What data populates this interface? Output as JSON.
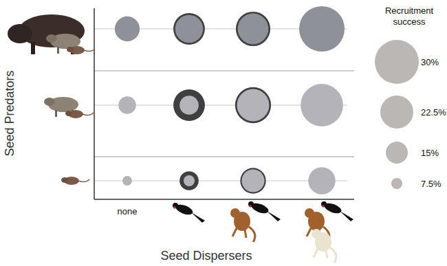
{
  "chart_data": {
    "type": "bubble",
    "x_label": "Seed Dispersers",
    "y_label": "Seed Predators",
    "categories": [
      "none",
      null,
      null,
      null
    ],
    "series": [
      {
        "color": "#8e9197",
        "values": [
          17,
          19,
          21,
          31
        ],
        "ring_values": [
          null,
          21.5,
          23.5,
          null
        ]
      },
      {
        "color": "#b3b3b9",
        "values": [
          12,
          13,
          22,
          29
        ],
        "ring_values": [
          null,
          21.5,
          24.5,
          null
        ]
      },
      {
        "color": "#b3b3b9",
        "values": [
          6.5,
          7.5,
          15.5,
          18.5
        ],
        "ring_values": [
          null,
          13,
          17.5,
          null
        ]
      }
    ],
    "size_legend": {
      "title": "Recruitment success",
      "color": "#bab7b5",
      "values": [
        30,
        22.5,
        15,
        7.5
      ],
      "labels": [
        "30%",
        "22.5%",
        "15%",
        "7.5%"
      ]
    }
  }
}
